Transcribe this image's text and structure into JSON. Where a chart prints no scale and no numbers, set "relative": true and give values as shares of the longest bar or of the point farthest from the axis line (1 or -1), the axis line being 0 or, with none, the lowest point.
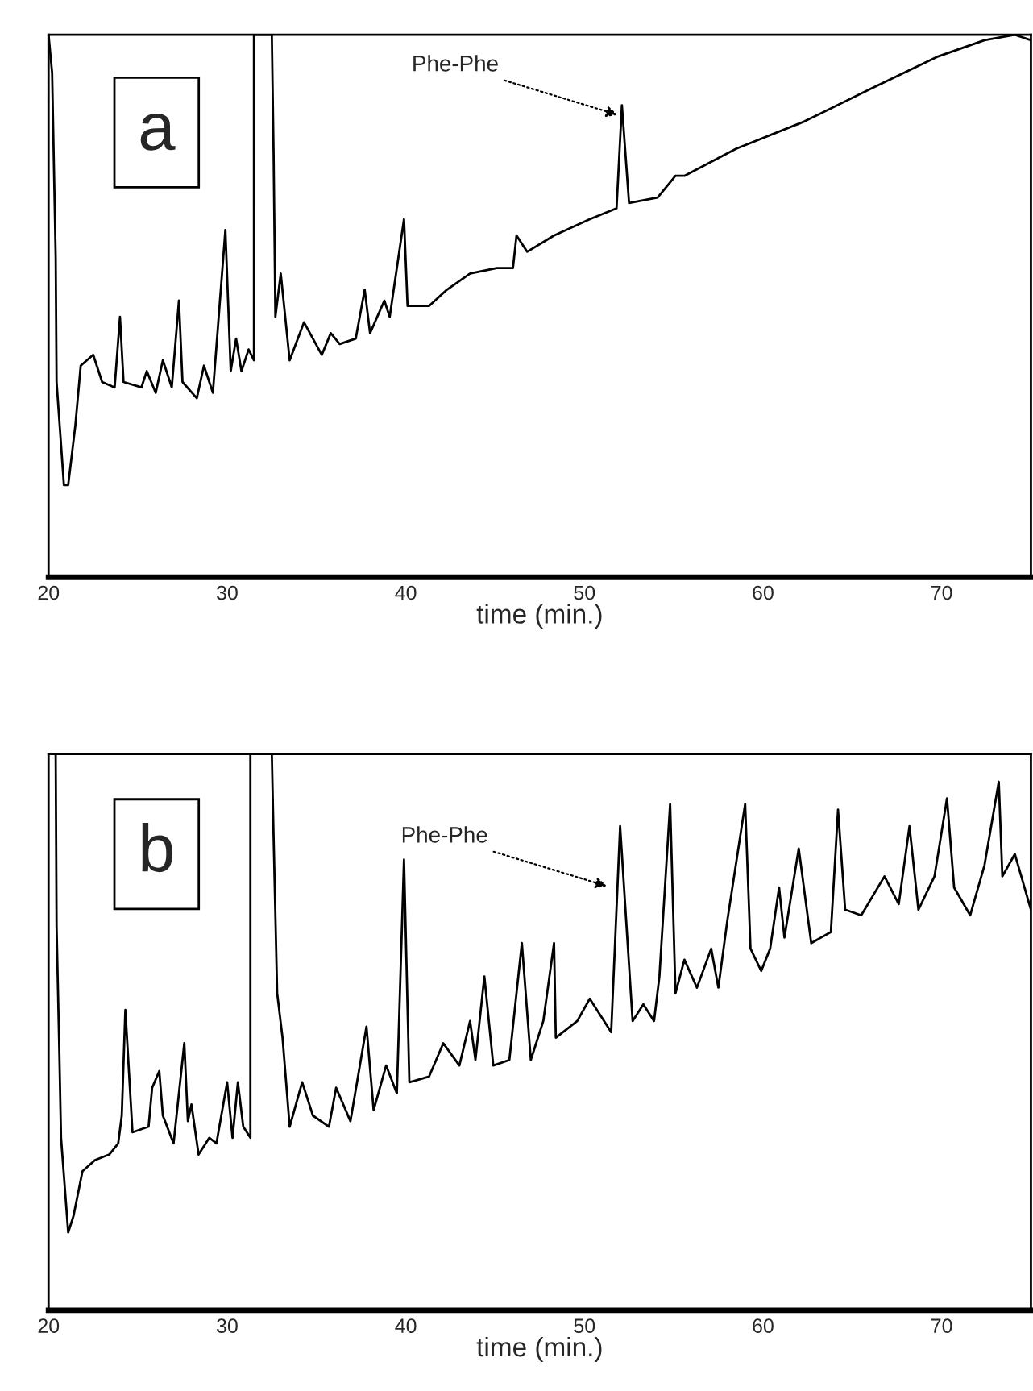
{
  "chart_data": [
    {
      "type": "line",
      "relative": true,
      "xlabel": "time (min.)",
      "xlim": [
        20,
        75
      ],
      "xticks": [
        20,
        30,
        40,
        50,
        60,
        70
      ],
      "grid": false,
      "legend": false,
      "tick_labels": "x",
      "annotations": [
        "a",
        {
          "text": "Phe-Phe",
          "x": 52.1,
          "y": 0.85
        }
      ],
      "series": [
        {
          "color": "#000000",
          "x": [
            20.0,
            20.2,
            20.4,
            20.45,
            20.86,
            21.1,
            21.5,
            21.8,
            22.5,
            23.0,
            23.7,
            24.0,
            24.2,
            25.2,
            25.5,
            26.0,
            26.4,
            26.9,
            27.3,
            27.5,
            28.3,
            28.7,
            29.2,
            29.9,
            30.2,
            30.5,
            30.8,
            31.2,
            31.5,
            31.5,
            32.5,
            32.6,
            32.7,
            33.0,
            33.5,
            34.3,
            35.3,
            35.8,
            36.3,
            37.2,
            37.7,
            38.0,
            38.8,
            39.1,
            39.9,
            40.1,
            41.3,
            42.3,
            43.6,
            45.1,
            46.0,
            46.2,
            46.8,
            48.3,
            50.3,
            51.8,
            52.1,
            52.5,
            54.1,
            55.1,
            55.6,
            58.5,
            62.3,
            66.0,
            69.8,
            72.4,
            74.1,
            75.0
          ],
          "values": [
            1.0,
            0.93,
            0.59,
            0.36,
            0.17,
            0.17,
            0.28,
            0.39,
            0.41,
            0.36,
            0.35,
            0.48,
            0.36,
            0.35,
            0.38,
            0.34,
            0.4,
            0.35,
            0.51,
            0.36,
            0.33,
            0.39,
            0.34,
            0.64,
            0.38,
            0.44,
            0.38,
            0.42,
            0.4,
            1.0,
            1.0,
            0.78,
            0.48,
            0.56,
            0.4,
            0.47,
            0.41,
            0.45,
            0.43,
            0.44,
            0.53,
            0.45,
            0.51,
            0.48,
            0.66,
            0.5,
            0.5,
            0.53,
            0.56,
            0.57,
            0.57,
            0.63,
            0.6,
            0.63,
            0.66,
            0.68,
            0.87,
            0.69,
            0.7,
            0.74,
            0.74,
            0.79,
            0.84,
            0.9,
            0.96,
            0.99,
            1.0,
            0.99
          ]
        }
      ]
    },
    {
      "type": "line",
      "relative": true,
      "xlabel": "time (min.)",
      "xlim": [
        20,
        75
      ],
      "xticks": [
        20,
        30,
        40,
        50,
        60,
        70
      ],
      "grid": false,
      "legend": false,
      "tick_labels": "x",
      "annotations": [
        "b",
        {
          "text": "Phe-Phe",
          "x": 51.5,
          "y": 0.76
        }
      ],
      "series": [
        {
          "color": "#000000",
          "x": [
            20.0,
            20.4,
            20.45,
            20.6,
            20.7,
            21.1,
            21.4,
            21.9,
            22.6,
            23.4,
            23.9,
            24.1,
            24.3,
            24.7,
            25.6,
            25.8,
            26.2,
            26.4,
            27.0,
            27.6,
            27.8,
            28.0,
            28.4,
            29.0,
            29.4,
            30.0,
            30.3,
            30.6,
            30.9,
            31.3,
            31.3,
            32.5,
            32.6,
            32.8,
            33.1,
            33.5,
            34.2,
            34.8,
            35.7,
            36.1,
            36.9,
            37.8,
            38.2,
            38.9,
            39.5,
            39.9,
            40.2,
            41.3,
            42.1,
            43.0,
            43.6,
            43.9,
            44.4,
            44.9,
            45.8,
            46.5,
            47.0,
            47.7,
            48.3,
            48.4,
            49.6,
            50.3,
            51.5,
            52.0,
            52.4,
            52.7,
            53.3,
            53.9,
            54.2,
            54.8,
            55.1,
            55.6,
            56.3,
            57.1,
            57.5,
            58.0,
            59.0,
            59.3,
            59.9,
            60.4,
            60.9,
            61.2,
            62.0,
            62.7,
            63.8,
            64.2,
            64.6,
            65.5,
            66.8,
            67.6,
            68.2,
            68.7,
            69.6,
            70.3,
            70.7,
            71.6,
            72.4,
            73.2,
            73.4,
            74.1,
            75.0
          ],
          "values": [
            1.0,
            1.0,
            0.69,
            0.47,
            0.31,
            0.14,
            0.17,
            0.25,
            0.27,
            0.28,
            0.3,
            0.35,
            0.54,
            0.32,
            0.33,
            0.4,
            0.43,
            0.35,
            0.3,
            0.48,
            0.34,
            0.37,
            0.28,
            0.31,
            0.3,
            0.41,
            0.31,
            0.41,
            0.33,
            0.31,
            1.0,
            1.0,
            0.85,
            0.57,
            0.49,
            0.33,
            0.41,
            0.35,
            0.33,
            0.4,
            0.34,
            0.51,
            0.36,
            0.44,
            0.39,
            0.81,
            0.41,
            0.42,
            0.48,
            0.44,
            0.52,
            0.45,
            0.6,
            0.44,
            0.45,
            0.66,
            0.45,
            0.52,
            0.66,
            0.49,
            0.52,
            0.56,
            0.5,
            0.87,
            0.67,
            0.52,
            0.55,
            0.52,
            0.6,
            0.91,
            0.57,
            0.63,
            0.58,
            0.65,
            0.58,
            0.7,
            0.91,
            0.65,
            0.61,
            0.65,
            0.76,
            0.67,
            0.83,
            0.66,
            0.68,
            0.9,
            0.72,
            0.71,
            0.78,
            0.73,
            0.87,
            0.72,
            0.78,
            0.92,
            0.76,
            0.71,
            0.8,
            0.95,
            0.78,
            0.82,
            0.72
          ]
        }
      ]
    }
  ]
}
